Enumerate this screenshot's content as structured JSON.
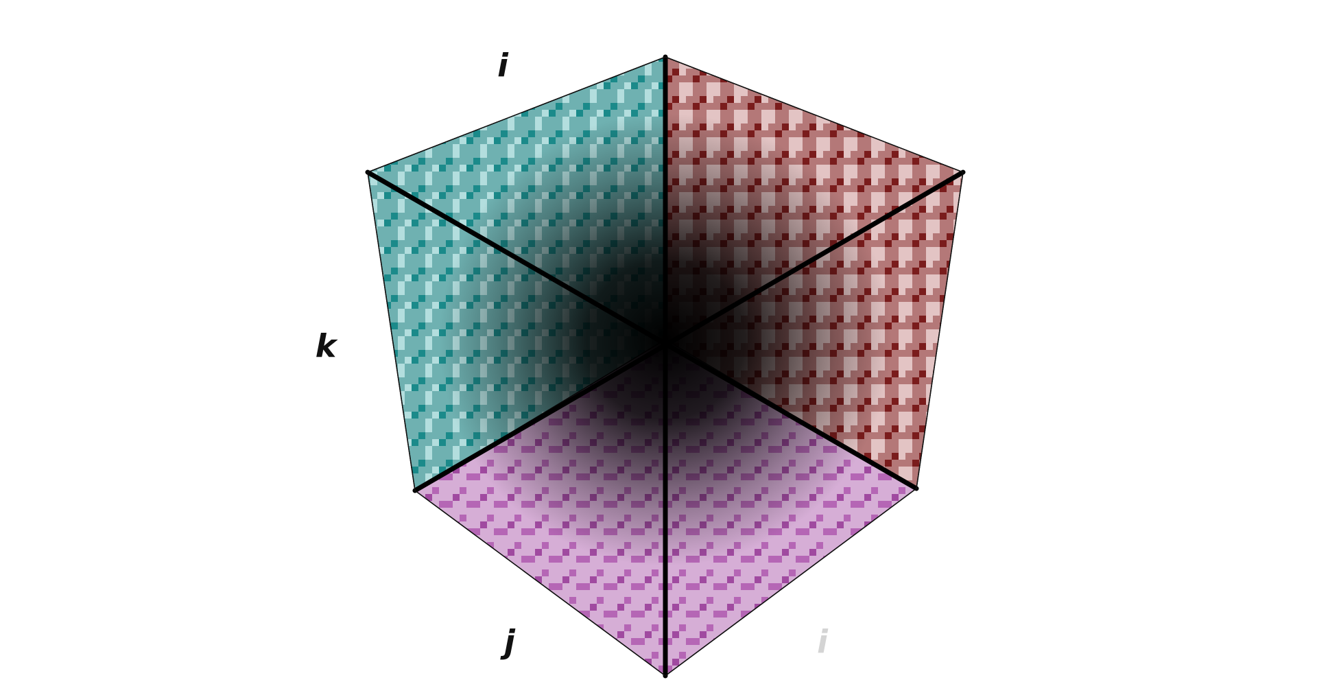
{
  "axis_labels": {
    "top": "i",
    "left": "k",
    "bottom_left": "j",
    "bottom_right": "i"
  }
}
